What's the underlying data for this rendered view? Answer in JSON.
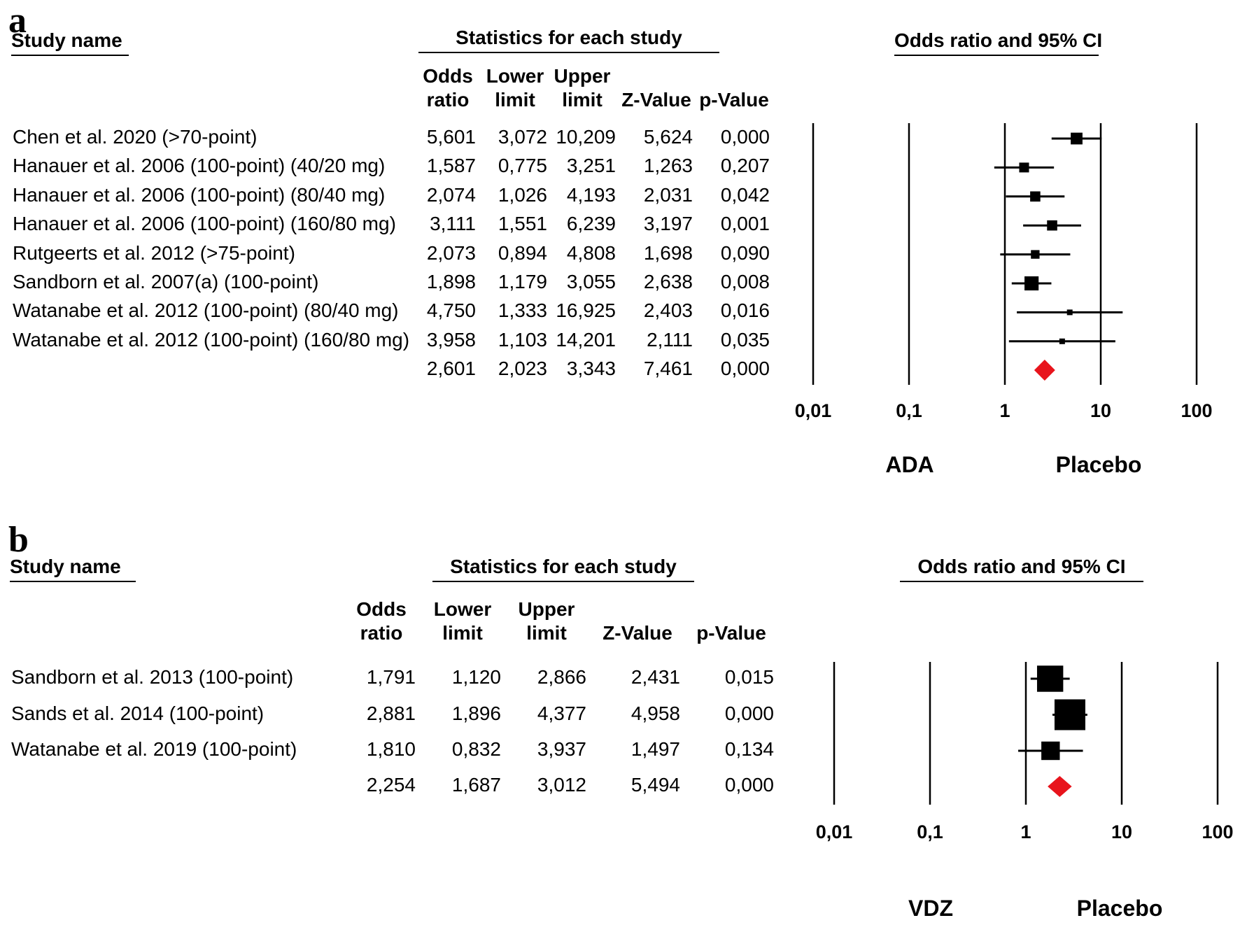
{
  "colors": {
    "study_marker": "#000000",
    "summary_diamond": "#e8141c"
  },
  "panels": [
    {
      "label": "a",
      "header_study": "Study name",
      "header_stats": "Statistics for each study",
      "header_plot": "Odds ratio and 95% CI",
      "columns": [
        {
          "l1": "Odds",
          "l2": "ratio"
        },
        {
          "l1": "Lower",
          "l2": "limit"
        },
        {
          "l1": "Upper",
          "l2": "limit"
        },
        {
          "l1": "",
          "l2": "Z-Value"
        },
        {
          "l1": "",
          "l2": "p-Value"
        }
      ],
      "rows": [
        {
          "study": "Chen et al. 2020 (>70-point)",
          "odds": "5,601",
          "lower": "3,072",
          "upper": "10,209",
          "z": "5,624",
          "p": "0,000"
        },
        {
          "study": "Hanauer et al. 2006 (100-point) (40/20 mg)",
          "odds": "1,587",
          "lower": "0,775",
          "upper": "3,251",
          "z": "1,263",
          "p": "0,207"
        },
        {
          "study": "Hanauer et al. 2006 (100-point) (80/40 mg)",
          "odds": "2,074",
          "lower": "1,026",
          "upper": "4,193",
          "z": "2,031",
          "p": "0,042"
        },
        {
          "study": "Hanauer et al. 2006 (100-point) (160/80 mg)",
          "odds": "3,111",
          "lower": "1,551",
          "upper": "6,239",
          "z": "3,197",
          "p": "0,001"
        },
        {
          "study": "Rutgeerts et al. 2012 (>75-point)",
          "odds": "2,073",
          "lower": "0,894",
          "upper": "4,808",
          "z": "1,698",
          "p": "0,090"
        },
        {
          "study": "Sandborn et al. 2007(a) (100-point)",
          "odds": "1,898",
          "lower": "1,179",
          "upper": "3,055",
          "z": "2,638",
          "p": "0,008"
        },
        {
          "study": "Watanabe et al. 2012 (100-point) (80/40 mg)",
          "odds": "4,750",
          "lower": "1,333",
          "upper": "16,925",
          "z": "2,403",
          "p": "0,016"
        },
        {
          "study": "Watanabe et al. 2012 (100-point) (160/80 mg)",
          "odds": "3,958",
          "lower": "1,103",
          "upper": "14,201",
          "z": "2,111",
          "p": "0,035"
        }
      ],
      "summary": {
        "odds": "2,601",
        "lower": "2,023",
        "upper": "3,343",
        "z": "7,461",
        "p": "0,000"
      },
      "axis_ticks": [
        "0,01",
        "0,1",
        "1",
        "10",
        "100"
      ],
      "favors_left": "ADA",
      "favors_right": "Placebo"
    },
    {
      "label": "b",
      "header_study": "Study name",
      "header_stats": "Statistics for each study",
      "header_plot": "Odds ratio and 95% CI",
      "columns": [
        {
          "l1": "Odds",
          "l2": "ratio"
        },
        {
          "l1": "Lower",
          "l2": "limit"
        },
        {
          "l1": "Upper",
          "l2": "limit"
        },
        {
          "l1": "",
          "l2": "Z-Value"
        },
        {
          "l1": "",
          "l2": "p-Value"
        }
      ],
      "rows": [
        {
          "study": "Sandborn et al. 2013 (100-point)",
          "odds": "1,791",
          "lower": "1,120",
          "upper": "2,866",
          "z": "2,431",
          "p": "0,015"
        },
        {
          "study": "Sands et al. 2014 (100-point)",
          "odds": "2,881",
          "lower": "1,896",
          "upper": "4,377",
          "z": "4,958",
          "p": "0,000"
        },
        {
          "study": "Watanabe et al. 2019 (100-point)",
          "odds": "1,810",
          "lower": "0,832",
          "upper": "3,937",
          "z": "1,497",
          "p": "0,134"
        }
      ],
      "summary": {
        "odds": "2,254",
        "lower": "1,687",
        "upper": "3,012",
        "z": "5,494",
        "p": "0,000"
      },
      "axis_ticks": [
        "0,01",
        "0,1",
        "1",
        "10",
        "100"
      ],
      "favors_left": "VDZ",
      "favors_right": "Placebo"
    }
  ],
  "chart_data": [
    {
      "type": "forest",
      "x_scale": "log",
      "xlim": [
        0.01,
        100
      ],
      "series": [
        {
          "study": "Chen et al. 2020 (>70-point)",
          "or": 5.601,
          "lower": 3.072,
          "upper": 10.209,
          "weight": 0.6
        },
        {
          "study": "Hanauer et al. 2006 (100-point) (40/20 mg)",
          "or": 1.587,
          "lower": 0.775,
          "upper": 3.251,
          "weight": 0.5
        },
        {
          "study": "Hanauer et al. 2006 (100-point) (80/40 mg)",
          "or": 2.074,
          "lower": 1.026,
          "upper": 4.193,
          "weight": 0.52
        },
        {
          "study": "Hanauer et al. 2006 (100-point) (160/80 mg)",
          "or": 3.111,
          "lower": 1.551,
          "upper": 6.239,
          "weight": 0.52
        },
        {
          "study": "Rutgeerts et al. 2012 (>75-point)",
          "or": 2.073,
          "lower": 0.894,
          "upper": 4.808,
          "weight": 0.44
        },
        {
          "study": "Sandborn et al. 2007(a) (100-point)",
          "or": 1.898,
          "lower": 1.179,
          "upper": 3.055,
          "weight": 0.72
        },
        {
          "study": "Watanabe et al. 2012 (100-point) (80/40 mg)",
          "or": 4.75,
          "lower": 1.333,
          "upper": 16.925,
          "weight": 0.28
        },
        {
          "study": "Watanabe et al. 2012 (100-point) (160/80 mg)",
          "or": 3.958,
          "lower": 1.103,
          "upper": 14.201,
          "weight": 0.28
        }
      ],
      "summary": {
        "or": 2.601,
        "lower": 2.023,
        "upper": 3.343
      },
      "ticks": [
        0.01,
        0.1,
        1,
        10,
        100
      ]
    },
    {
      "type": "forest",
      "x_scale": "log",
      "xlim": [
        0.01,
        100
      ],
      "series": [
        {
          "study": "Sandborn et al. 2013 (100-point)",
          "or": 1.791,
          "lower": 1.12,
          "upper": 2.866,
          "weight": 0.85
        },
        {
          "study": "Sands et al. 2014 (100-point)",
          "or": 2.881,
          "lower": 1.896,
          "upper": 4.377,
          "weight": 1.0
        },
        {
          "study": "Watanabe et al. 2019 (100-point)",
          "or": 1.81,
          "lower": 0.832,
          "upper": 3.937,
          "weight": 0.6
        }
      ],
      "summary": {
        "or": 2.254,
        "lower": 1.687,
        "upper": 3.012
      },
      "ticks": [
        0.01,
        0.1,
        1,
        10,
        100
      ]
    }
  ]
}
